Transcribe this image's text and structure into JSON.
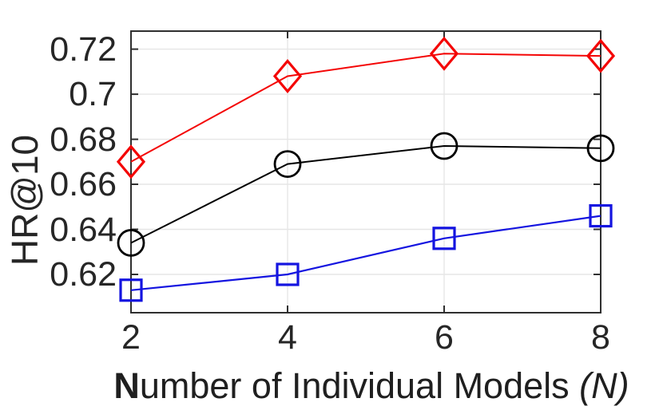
{
  "figure": {
    "background": "#ffffff",
    "axis_color": "#2f2f2f",
    "grid_color": "#e6e6e6",
    "tick_color": "#2f2f2f",
    "text_color": "#262626"
  },
  "chart_data": {
    "type": "line",
    "title": "",
    "xlabel": "Number of Individual Models (N)",
    "xlabel_parts": {
      "bold": "N",
      "rest": "umber of Individual Models ",
      "italic": "(N)"
    },
    "ylabel": "HR@10",
    "x": [
      2,
      4,
      6,
      8
    ],
    "xticks": [
      "2",
      "4",
      "6",
      "8"
    ],
    "yticks": [
      "0.72",
      "0.7",
      "0.68",
      "0.66",
      "0.64",
      "0.62"
    ],
    "ytick_values": [
      0.72,
      0.7,
      0.68,
      0.66,
      0.64,
      0.62
    ],
    "xlim": [
      2,
      8
    ],
    "ylim": [
      0.603,
      0.728
    ],
    "grid": true,
    "legend": "none",
    "box": true,
    "series": [
      {
        "name": "red-diamond",
        "marker": "diamond",
        "color": "#f40505",
        "line_width": 2,
        "marker_stroke": 3.2,
        "values": [
          0.67,
          0.708,
          0.718,
          0.717
        ]
      },
      {
        "name": "black-circle",
        "marker": "circle",
        "color": "#000000",
        "line_width": 2,
        "marker_stroke": 2.8,
        "values": [
          0.634,
          0.669,
          0.677,
          0.676
        ]
      },
      {
        "name": "blue-square",
        "marker": "square",
        "color": "#1414e0",
        "line_width": 2.2,
        "marker_stroke": 3.2,
        "values": [
          0.613,
          0.62,
          0.636,
          0.646
        ]
      }
    ]
  }
}
